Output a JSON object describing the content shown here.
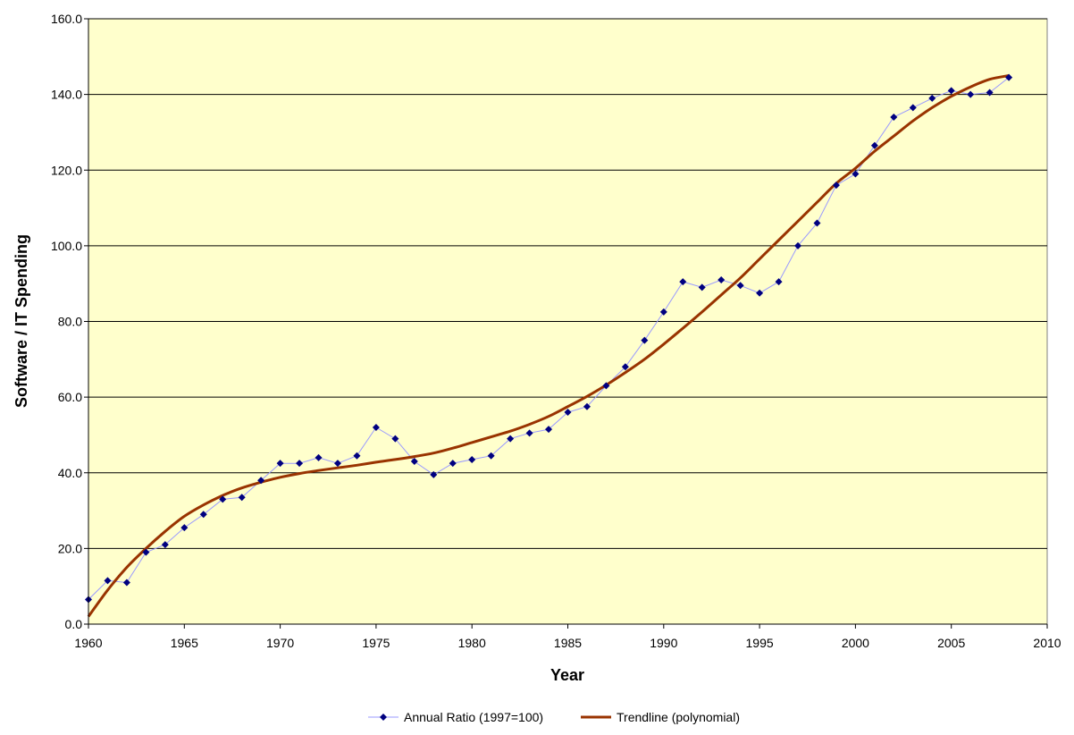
{
  "chart_data": {
    "type": "line",
    "title": "",
    "xlabel": "Year",
    "ylabel": "Software / IT Spending",
    "xlim": [
      1960,
      2010
    ],
    "ylim": [
      0,
      160
    ],
    "x_ticks": [
      1960,
      1965,
      1970,
      1975,
      1980,
      1985,
      1990,
      1995,
      2000,
      2005,
      2010
    ],
    "y_ticks": [
      0,
      20,
      40,
      60,
      80,
      100,
      120,
      140,
      160
    ],
    "x_tick_labels": [
      "1960",
      "1965",
      "1970",
      "1975",
      "1980",
      "1985",
      "1990",
      "1995",
      "2000",
      "2005",
      "2010"
    ],
    "y_tick_labels": [
      "0.0",
      "20.0",
      "40.0",
      "60.0",
      "80.0",
      "100.0",
      "120.0",
      "140.0",
      "160.0"
    ],
    "grid": "horizontal",
    "plot_background": "#FFFFCC",
    "legend_position": "bottom",
    "series": [
      {
        "name": "Annual Ratio (1997=100)",
        "color": "#000080",
        "line_color": "#9999FF",
        "marker": "diamond",
        "x": [
          1960,
          1961,
          1962,
          1963,
          1964,
          1965,
          1966,
          1967,
          1968,
          1969,
          1970,
          1971,
          1972,
          1973,
          1974,
          1975,
          1976,
          1977,
          1978,
          1979,
          1980,
          1981,
          1982,
          1983,
          1984,
          1985,
          1986,
          1987,
          1988,
          1989,
          1990,
          1991,
          1992,
          1993,
          1994,
          1995,
          1996,
          1997,
          1998,
          1999,
          2000,
          2001,
          2002,
          2003,
          2004,
          2005,
          2006,
          2007,
          2008
        ],
        "values": [
          6.5,
          11.5,
          11,
          19,
          21,
          25.5,
          29,
          33,
          33.5,
          38,
          42.5,
          42.5,
          44,
          42.5,
          44.5,
          52,
          49,
          43,
          39.5,
          42.5,
          43.5,
          44.5,
          49,
          50.5,
          51.5,
          56,
          57.5,
          63,
          68,
          75,
          82.5,
          90.5,
          89,
          91,
          89.5,
          87.5,
          90.5,
          100,
          106,
          116,
          119,
          126.5,
          134,
          136.5,
          139,
          141,
          140,
          140.5,
          144.5
        ]
      },
      {
        "name": "Trendline (polynomial)",
        "color": "#993300",
        "marker": "none",
        "x": [
          1960,
          1961,
          1962,
          1963,
          1964,
          1965,
          1966,
          1967,
          1968,
          1969,
          1970,
          1971,
          1972,
          1973,
          1974,
          1975,
          1976,
          1977,
          1978,
          1979,
          1980,
          1981,
          1982,
          1983,
          1984,
          1985,
          1986,
          1987,
          1988,
          1989,
          1990,
          1991,
          1992,
          1993,
          1994,
          1995,
          1996,
          1997,
          1998,
          1999,
          2000,
          2001,
          2002,
          2003,
          2004,
          2005,
          2006,
          2007,
          2008
        ],
        "values": [
          2,
          9,
          15,
          20,
          24.5,
          28.5,
          31.5,
          34,
          36,
          37.5,
          38.8,
          39.8,
          40.6,
          41.3,
          42,
          42.8,
          43.5,
          44.3,
          45.2,
          46.5,
          48,
          49.5,
          51,
          52.8,
          54.9,
          57.5,
          60.2,
          63.2,
          66.5,
          70,
          74,
          78.2,
          82.5,
          87,
          91.5,
          96.5,
          101.5,
          106.5,
          111.5,
          116.5,
          120.5,
          125,
          129,
          133,
          136.5,
          139.5,
          142,
          144,
          145
        ]
      }
    ]
  }
}
